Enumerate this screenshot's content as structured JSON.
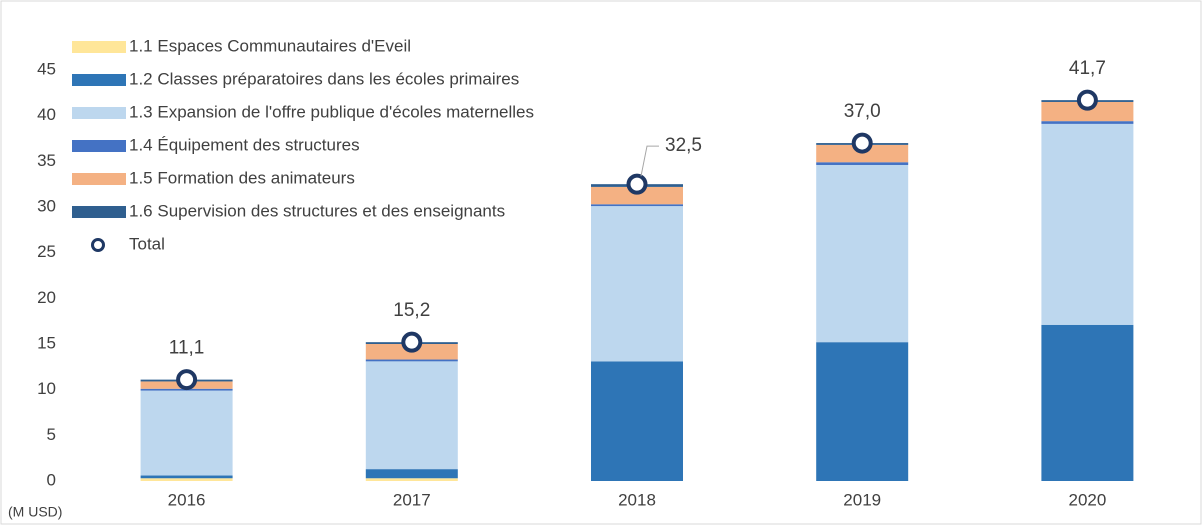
{
  "chart_data": {
    "type": "stacked-bar",
    "y_unit": "(M USD)",
    "categories": [
      "2016",
      "2017",
      "2018",
      "2019",
      "2020"
    ],
    "ylim": [
      0,
      45
    ],
    "yticks": [
      0,
      5,
      10,
      15,
      20,
      25,
      30,
      35,
      40,
      45
    ],
    "series": [
      {
        "name": "1.1 Espaces Communautaires d'Eveil",
        "color": "#ffe699",
        "values": [
          0.3,
          0.3,
          0,
          0,
          0
        ]
      },
      {
        "name": "1.2 Classes préparatoires dans les écoles primaires",
        "color": "#2e75b6",
        "values": [
          0.3,
          1.0,
          13.1,
          15.2,
          17.1
        ]
      },
      {
        "name": "1.3 Expansion de l'offre publique d'écoles maternelles",
        "color": "#bdd7ee",
        "values": [
          9.3,
          11.8,
          17.0,
          19.4,
          22.0
        ]
      },
      {
        "name": "1.4 Équipement des structures",
        "color": "#4472c4",
        "values": [
          0.2,
          0.2,
          0.2,
          0.3,
          0.3
        ]
      },
      {
        "name": "1.5 Formation des animateurs",
        "color": "#f4b183",
        "values": [
          0.8,
          1.7,
          1.9,
          1.9,
          2.1
        ]
      },
      {
        "name": "1.6 Supervision des structures et des enseignants",
        "color": "#2f5f8f",
        "values": [
          0.2,
          0.2,
          0.3,
          0.2,
          0.2
        ]
      }
    ],
    "totals": {
      "name": "Total",
      "color": "#1f3864",
      "values": [
        11.1,
        15.2,
        32.5,
        37.0,
        41.7
      ],
      "value_labels": [
        "11,1",
        "15,2",
        "32,5",
        "37,0",
        "41,7"
      ]
    }
  }
}
